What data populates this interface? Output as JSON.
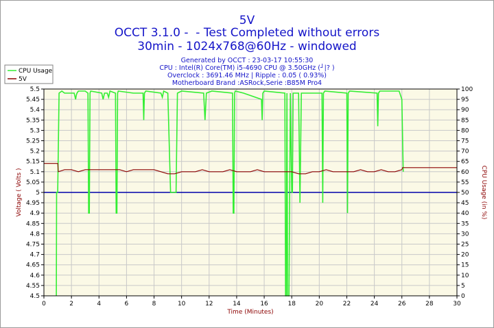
{
  "header": {
    "title": "5V",
    "line2": "OCCT 3.1.0 -  - Test Completed without errors",
    "line3": "30min - 1024x768@60Hz - windowed"
  },
  "info": {
    "generated": "Generated by OCCT : 23-03-17 10:55:30",
    "cpu": "CPU : Intel(R) Core(TM) i5-4690 CPU @ 3.50GHz (┘|? )",
    "overclock": "Overclock : 3691.46 MHz | Ripple : 0.05 ( 0.93%)",
    "motherboard": "Motherboard Brand :ASRock,Serie :B85M Pro4"
  },
  "colors": {
    "plot_bg": "#fbf9e6",
    "grid": "#c8c8c8",
    "cpu_usage": "#33ee33",
    "voltage": "#8b0000",
    "reference": "#0000aa",
    "title": "#1414c8"
  },
  "chart_data": {
    "type": "line",
    "xlabel": "Time (Minutes)",
    "ylabel": "Voltage ( Volts )",
    "y2label": "CPU Usage (in %)",
    "xlim": [
      0,
      30
    ],
    "ylim": [
      4.5,
      5.5
    ],
    "y2lim": [
      0,
      100
    ],
    "grid": true,
    "legend_position": "top-left",
    "x_ticks": [
      "0",
      "2",
      "4",
      "6",
      "8",
      "10",
      "12",
      "14",
      "16",
      "18",
      "20",
      "22",
      "24",
      "26",
      "28",
      "30"
    ],
    "y_ticks": [
      "4.5",
      "4.55",
      "4.6",
      "4.65",
      "4.7",
      "4.75",
      "4.8",
      "4.85",
      "4.9",
      "4.95",
      "5",
      "5.05",
      "5.1",
      "5.15",
      "5.2",
      "5.25",
      "5.3",
      "5.35",
      "5.4",
      "5.45",
      "5.5"
    ],
    "y2_ticks": [
      "0",
      "5",
      "10",
      "15",
      "20",
      "25",
      "30",
      "35",
      "40",
      "45",
      "50",
      "55",
      "60",
      "65",
      "70",
      "75",
      "80",
      "85",
      "90",
      "95",
      "100"
    ],
    "series": [
      {
        "name": "CPU Usage",
        "axis": "right",
        "x": [
          0.9,
          0.92,
          1.0,
          1.1,
          1.3,
          1.5,
          2.2,
          2.3,
          2.35,
          2.4,
          2.5,
          3.0,
          3.2,
          3.25,
          3.3,
          3.35,
          3.4,
          4.2,
          4.3,
          4.4,
          4.6,
          4.7,
          4.8,
          5.2,
          5.25,
          5.3,
          5.35,
          5.4,
          6.5,
          7.2,
          7.25,
          7.3,
          7.4,
          8.5,
          8.6,
          8.7,
          9.0,
          9.2,
          9.6,
          9.7,
          10.0,
          11.6,
          11.7,
          11.8,
          12.2,
          13.7,
          13.75,
          13.8,
          13.85,
          13.9,
          14.5,
          15.8,
          15.85,
          15.9,
          16.0,
          17.5,
          17.55,
          17.6,
          17.65,
          17.7,
          17.8,
          17.9,
          18.0,
          18.05,
          18.1,
          18.5,
          18.6,
          18.7,
          20.2,
          20.25,
          20.3,
          20.4,
          22.0,
          22.05,
          22.1,
          22.2,
          24.2,
          24.25,
          24.3,
          24.4,
          25.8,
          26.0,
          26.1
        ],
        "values": [
          0,
          50,
          50,
          98,
          99,
          98,
          98,
          95,
          97,
          98,
          99,
          99,
          98,
          40,
          40,
          98,
          99,
          98,
          95,
          98,
          98,
          96,
          99,
          98,
          40,
          40,
          98,
          99,
          98,
          98,
          85,
          98,
          99,
          98,
          96,
          99,
          98,
          50,
          50,
          98,
          99,
          98,
          85,
          98,
          99,
          98,
          40,
          40,
          98,
          99,
          98,
          95,
          85,
          98,
          99,
          98,
          0,
          0,
          98,
          0,
          0,
          98,
          50,
          50,
          98,
          98,
          45,
          98,
          98,
          45,
          98,
          99,
          98,
          40,
          98,
          99,
          98,
          82,
          98,
          99,
          99,
          95,
          60
        ]
      },
      {
        "name": "5V",
        "axis": "left",
        "x": [
          0,
          1.0,
          1.05,
          1.5,
          2.0,
          2.5,
          3.0,
          3.5,
          4.0,
          4.5,
          5.0,
          5.5,
          6.0,
          6.5,
          7.0,
          7.5,
          8.0,
          8.5,
          9.0,
          9.5,
          10.0,
          10.5,
          11.0,
          11.5,
          12.0,
          12.5,
          13.0,
          13.5,
          14.0,
          14.5,
          15.0,
          15.5,
          16.0,
          16.5,
          17.0,
          17.5,
          18.0,
          18.5,
          19.0,
          19.5,
          20.0,
          20.5,
          21.0,
          21.5,
          22.0,
          22.5,
          23.0,
          23.5,
          24.0,
          24.5,
          25.0,
          25.5,
          26.0,
          26.05,
          26.5,
          27.0,
          27.5,
          28.0,
          28.5,
          29.0,
          29.5,
          30.0
        ],
        "values": [
          5.14,
          5.14,
          5.1,
          5.11,
          5.11,
          5.1,
          5.11,
          5.11,
          5.11,
          5.11,
          5.11,
          5.11,
          5.1,
          5.11,
          5.11,
          5.11,
          5.11,
          5.1,
          5.09,
          5.09,
          5.1,
          5.1,
          5.1,
          5.11,
          5.1,
          5.1,
          5.1,
          5.11,
          5.1,
          5.1,
          5.1,
          5.11,
          5.1,
          5.1,
          5.1,
          5.1,
          5.1,
          5.09,
          5.09,
          5.1,
          5.1,
          5.11,
          5.1,
          5.1,
          5.1,
          5.1,
          5.11,
          5.1,
          5.1,
          5.11,
          5.1,
          5.1,
          5.11,
          5.12,
          5.12,
          5.12,
          5.12,
          5.12,
          5.12,
          5.12,
          5.12,
          5.12
        ]
      }
    ],
    "reference_line": {
      "axis": "left",
      "value": 5.0
    }
  }
}
